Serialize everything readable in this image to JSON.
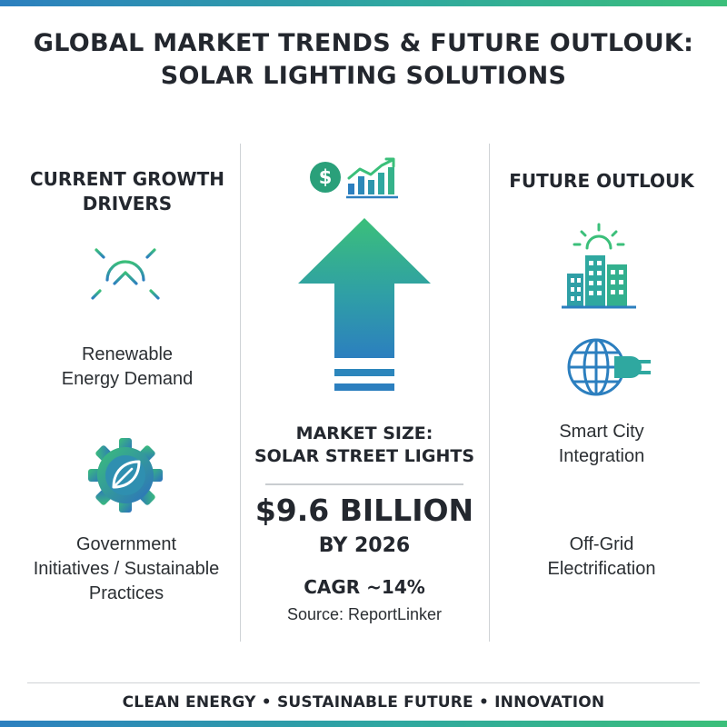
{
  "title": {
    "line1": "GLOBAL MARKET TRENDS & FUTURE OUTLOUK:",
    "line2": "SOLAR LIGHTING SOLUTIONS"
  },
  "left": {
    "heading_line1": "CURRENT GROWTH",
    "heading_line2": "DRIVERS",
    "items": [
      {
        "line1": "Renewable",
        "line2": "Energy Demand",
        "icon": "sun-arrow-icon"
      },
      {
        "line1": "Government",
        "line2": "Initiatives / Sustainable",
        "line3": "Practices",
        "icon": "gear-leaf-icon"
      }
    ]
  },
  "center": {
    "icons": [
      "dollar-icon",
      "growth-chart-icon",
      "up-arrow-icon"
    ],
    "market_title_line1": "MARKET SIZE:",
    "market_title_line2": "SOLAR STREET LIGHTS",
    "value": "$9.6 BILLION",
    "by_year": "BY 2026",
    "cagr": "CAGR ~14%",
    "source": "Source: ReportLinker"
  },
  "right": {
    "heading": "FUTURE OUTLOUK",
    "items": [
      {
        "line1": "Smart City",
        "line2": "Integration",
        "icon": "smart-city-icon"
      },
      {
        "line1": "Off-Grid",
        "line2": "Electrification",
        "icon": "globe-plug-icon"
      }
    ]
  },
  "footer": "CLEAN ENERGY • SUSTAINABLE FUTURE • INNOVATION",
  "colors": {
    "blue": "#2c7fbf",
    "teal": "#2fa8a0",
    "green": "#3bbf7a",
    "text": "#23272e"
  }
}
